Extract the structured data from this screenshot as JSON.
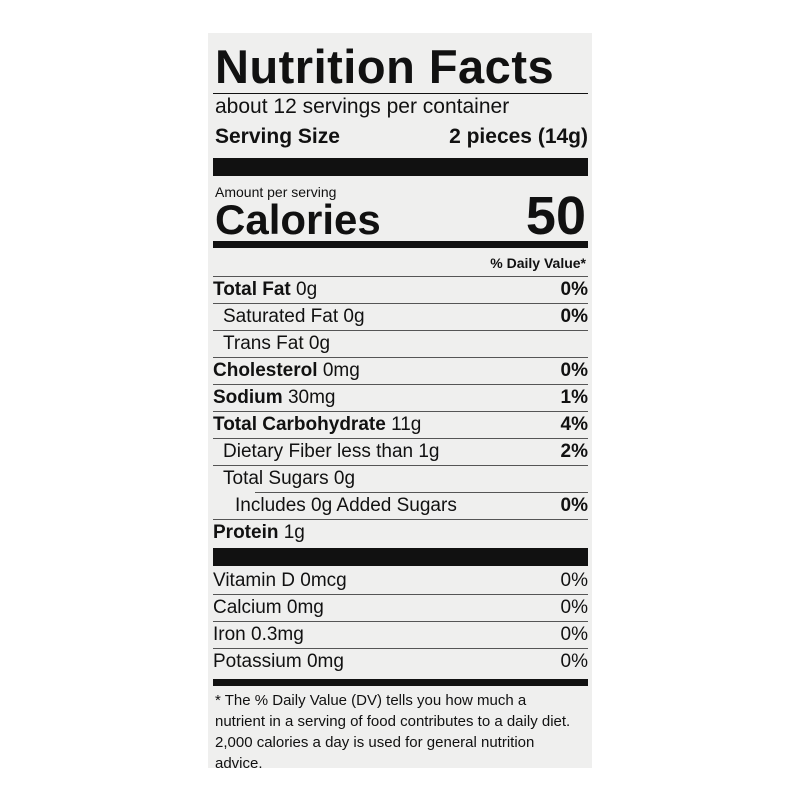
{
  "title": "Nutrition Facts",
  "servings": "about 12 servings per container",
  "serving_size": {
    "label": "Serving Size",
    "value": "2 pieces (14g)"
  },
  "amount_per_serving": "Amount per serving",
  "calories": {
    "label": "Calories",
    "value": "50"
  },
  "dv_header": "% Daily Value*",
  "nutrients": [
    {
      "name": "Total Fat",
      "amount": "0g",
      "dv": "0%"
    },
    {
      "name": "Saturated Fat 0g",
      "dv": "0%"
    },
    {
      "name": "Trans Fat 0g"
    },
    {
      "name": "Cholesterol",
      "amount": "0mg",
      "dv": "0%"
    },
    {
      "name": "Sodium",
      "amount": "30mg",
      "dv": "1%"
    },
    {
      "name": "Total Carbohydrate",
      "amount": "11g",
      "dv": "4%"
    },
    {
      "name": "Dietary Fiber less than 1g",
      "dv": "2%"
    },
    {
      "name": "Total Sugars 0g"
    },
    {
      "name": "Includes 0g Added Sugars",
      "dv": "0%"
    },
    {
      "name": "Protein",
      "amount": "1g"
    }
  ],
  "vitamins": [
    {
      "name": "Vitamin D 0mcg",
      "dv": "0%"
    },
    {
      "name": "Calcium 0mg",
      "dv": "0%"
    },
    {
      "name": "Iron 0.3mg",
      "dv": "0%"
    },
    {
      "name": "Potassium 0mg",
      "dv": "0%"
    }
  ],
  "footnote": "* The % Daily Value (DV) tells you how much a nutrient in a serving of food contributes to a daily diet. 2,000 calories a day is used for general nutrition advice."
}
